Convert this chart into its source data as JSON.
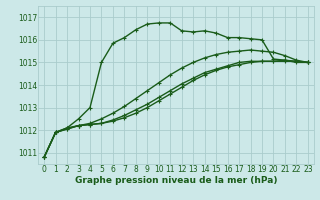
{
  "bg_color": "#cce8e8",
  "grid_color": "#aacccc",
  "line_color": "#1a5c1a",
  "xlabel": "Graphe pression niveau de la mer (hPa)",
  "xlim": [
    -0.5,
    23.5
  ],
  "ylim": [
    1010.5,
    1017.5
  ],
  "yticks": [
    1011,
    1012,
    1013,
    1014,
    1015,
    1016,
    1017
  ],
  "xticks": [
    0,
    1,
    2,
    3,
    4,
    5,
    6,
    7,
    8,
    9,
    10,
    11,
    12,
    13,
    14,
    15,
    16,
    17,
    18,
    19,
    20,
    21,
    22,
    23
  ],
  "series": [
    {
      "x": [
        0,
        1,
        2,
        3,
        4,
        5,
        6,
        7,
        8,
        9,
        10,
        11,
        12,
        13,
        14,
        15,
        16,
        17,
        18,
        19,
        20,
        21,
        22,
        23
      ],
      "y": [
        1010.8,
        1011.9,
        1012.1,
        1012.5,
        1013.0,
        1015.0,
        1015.85,
        1016.1,
        1016.45,
        1016.7,
        1016.75,
        1016.75,
        1016.4,
        1016.35,
        1016.4,
        1016.3,
        1016.1,
        1016.1,
        1016.05,
        1016.0,
        1015.15,
        1015.1,
        1015.0,
        1015.0
      ],
      "linestyle": "-",
      "linewidth": 1.0,
      "marker": "+"
    },
    {
      "x": [
        0,
        1,
        2,
        3,
        4,
        5,
        6,
        7,
        8,
        9,
        10,
        11,
        12,
        13,
        14,
        15,
        16,
        17,
        18,
        19,
        20,
        21,
        22,
        23
      ],
      "y": [
        1010.8,
        1011.9,
        1012.05,
        1012.2,
        1012.25,
        1012.3,
        1012.4,
        1012.55,
        1012.75,
        1013.0,
        1013.3,
        1013.6,
        1013.9,
        1014.2,
        1014.45,
        1014.65,
        1014.8,
        1014.9,
        1015.0,
        1015.05,
        1015.05,
        1015.1,
        1015.05,
        1015.0
      ],
      "linestyle": "-",
      "linewidth": 1.0,
      "marker": "+"
    },
    {
      "x": [
        0,
        1,
        2,
        3,
        4,
        5,
        6,
        7,
        8,
        9,
        10,
        11,
        12,
        13,
        14,
        15,
        16,
        17,
        18,
        19,
        20,
        21,
        22,
        23
      ],
      "y": [
        1010.8,
        1011.9,
        1012.05,
        1012.2,
        1012.25,
        1012.3,
        1012.45,
        1012.65,
        1012.9,
        1013.15,
        1013.45,
        1013.75,
        1014.05,
        1014.3,
        1014.55,
        1014.7,
        1014.85,
        1015.0,
        1015.05,
        1015.05,
        1015.05,
        1015.05,
        1015.05,
        1015.0
      ],
      "linestyle": "-",
      "linewidth": 1.0,
      "marker": "+"
    },
    {
      "x": [
        0,
        1,
        2,
        3,
        4,
        5,
        6,
        7,
        8,
        9,
        10,
        11,
        12,
        13,
        14,
        15,
        16,
        17,
        18,
        19,
        20,
        21,
        22,
        23
      ],
      "y": [
        1010.8,
        1011.9,
        1012.1,
        1012.2,
        1012.3,
        1012.5,
        1012.75,
        1013.05,
        1013.4,
        1013.75,
        1014.1,
        1014.45,
        1014.75,
        1015.0,
        1015.2,
        1015.35,
        1015.45,
        1015.5,
        1015.55,
        1015.5,
        1015.45,
        1015.3,
        1015.1,
        1015.0
      ],
      "linestyle": "-",
      "linewidth": 1.0,
      "marker": "+"
    }
  ],
  "markersize": 3.5,
  "xlabel_fontsize": 6.5,
  "tick_fontsize": 5.5
}
